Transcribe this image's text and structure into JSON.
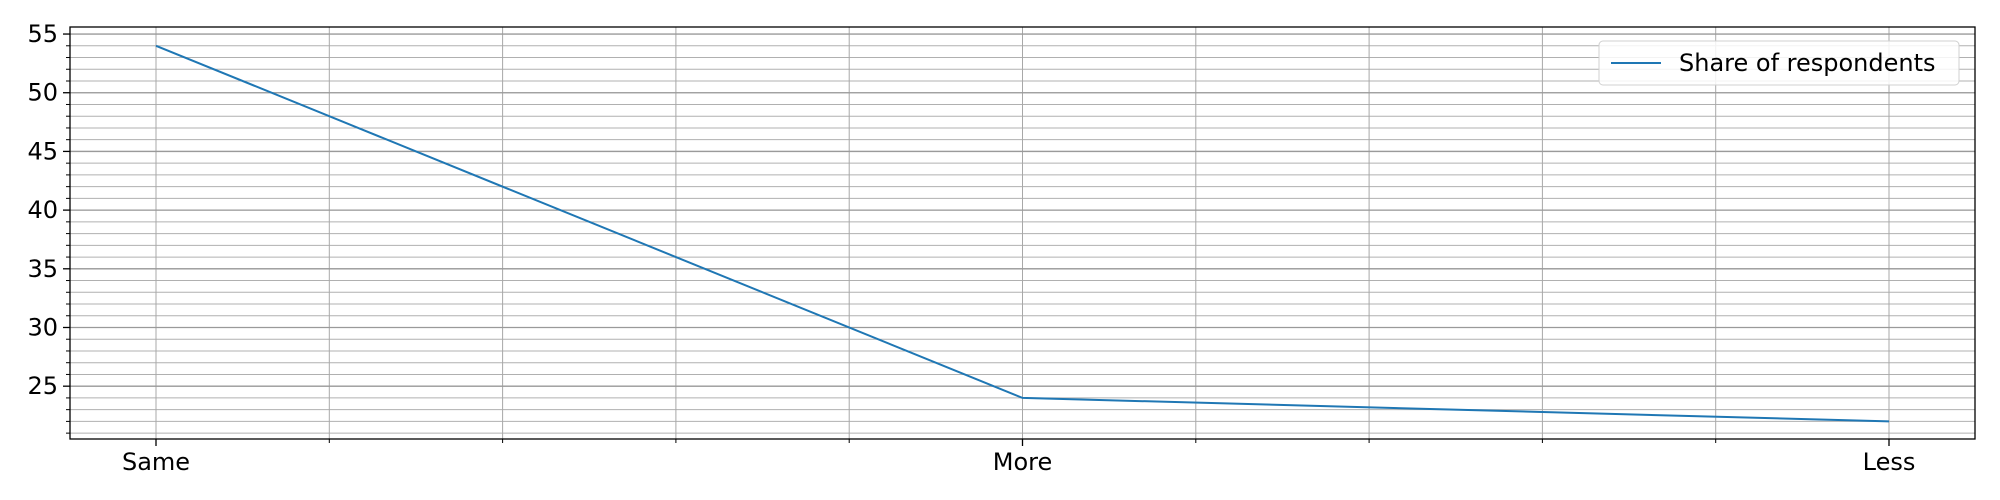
{
  "chart_data": {
    "type": "line",
    "categories": [
      "Same",
      "More",
      "Less"
    ],
    "series": [
      {
        "name": "Share of respondents",
        "values": [
          54,
          24,
          22
        ],
        "color": "#1f77b4"
      }
    ],
    "ylim": [
      20.5,
      55.6
    ],
    "yticks": [
      25,
      30,
      35,
      40,
      45,
      50,
      55
    ],
    "grid": true,
    "legend_position": "top-right",
    "title": "",
    "xlabel": "",
    "ylabel": ""
  }
}
